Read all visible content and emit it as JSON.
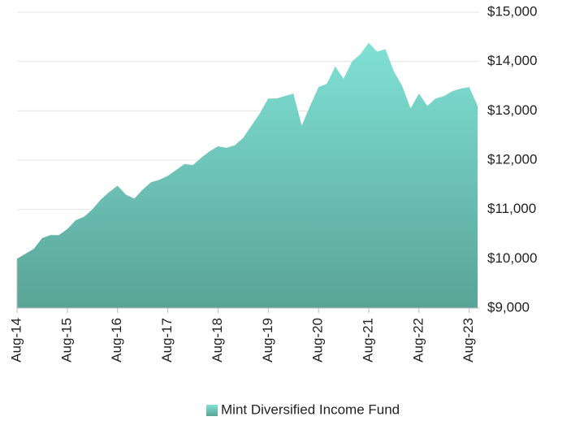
{
  "chart_data": {
    "type": "area",
    "categories": [
      "Aug-14",
      null,
      null,
      null,
      null,
      null,
      "Aug-15",
      null,
      null,
      null,
      null,
      null,
      "Aug-16",
      null,
      null,
      null,
      null,
      null,
      "Aug-17",
      null,
      null,
      null,
      null,
      null,
      "Aug-18",
      null,
      null,
      null,
      null,
      null,
      "Aug-19",
      null,
      null,
      null,
      null,
      null,
      "Aug-20",
      null,
      null,
      null,
      null,
      null,
      "Aug-21",
      null,
      null,
      null,
      null,
      null,
      "Aug-22",
      null,
      null,
      null,
      null,
      null,
      "Aug-23",
      null
    ],
    "series": [
      {
        "name": "Mint Diversified Income Fund",
        "color": "#80e1d5",
        "color_bottom": "#5aa397",
        "values": [
          10000,
          10100,
          10200,
          10420,
          10480,
          10480,
          10600,
          10780,
          10850,
          11000,
          11200,
          11350,
          11480,
          11300,
          11220,
          11400,
          11550,
          11600,
          11680,
          11800,
          11920,
          11900,
          12050,
          12180,
          12280,
          12250,
          12300,
          12450,
          12700,
          12950,
          13250,
          13250,
          13300,
          13350,
          12700,
          13100,
          13480,
          13550,
          13900,
          13650,
          14000,
          14150,
          14380,
          14200,
          14250,
          13800,
          13500,
          13050,
          13350,
          13100,
          13250,
          13300,
          13400,
          13450,
          13480,
          13100
        ]
      }
    ],
    "ylim": [
      9000,
      15000
    ],
    "yticks": [
      {
        "value": 9000,
        "label": "$9,000"
      },
      {
        "value": 10000,
        "label": "$10,000"
      },
      {
        "value": 11000,
        "label": "$11,000"
      },
      {
        "value": 12000,
        "label": "$12,000"
      },
      {
        "value": 13000,
        "label": "$13,000"
      },
      {
        "value": 14000,
        "label": "$14,000"
      },
      {
        "value": 15000,
        "label": "$15,000"
      }
    ],
    "grid": true
  }
}
